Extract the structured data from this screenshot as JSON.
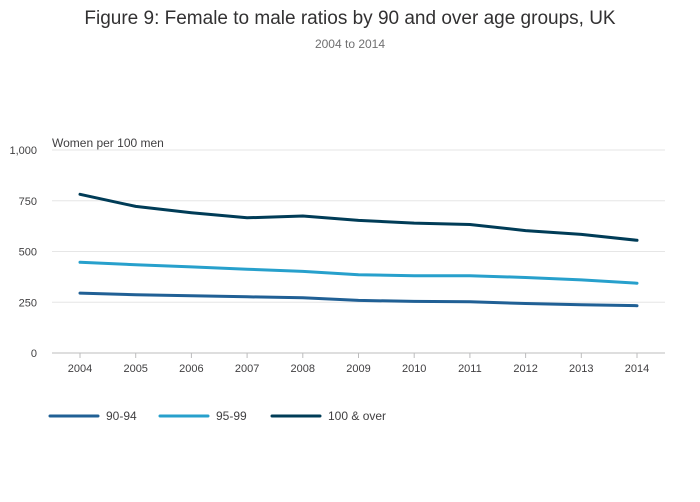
{
  "chart_data": {
    "type": "line",
    "title": "Figure 9: Female to male ratios by 90 and over age groups, UK",
    "subtitle": "2004 to 2014",
    "ylabel": "Women per 100 men",
    "xlabel": "",
    "x": [
      "2004",
      "2005",
      "2006",
      "2007",
      "2008",
      "2009",
      "2010",
      "2011",
      "2012",
      "2013",
      "2014"
    ],
    "ylim": [
      0,
      1000
    ],
    "yticks": [
      0,
      250,
      500,
      750,
      1000
    ],
    "ytick_labels": [
      "0",
      "250",
      "500",
      "750",
      "1,000"
    ],
    "grid": true,
    "legend_position": "bottom-left",
    "series": [
      {
        "name": "90-94",
        "color": "#206095",
        "values": [
          295,
          287,
          282,
          277,
          272,
          259,
          254,
          252,
          244,
          238,
          233
        ]
      },
      {
        "name": "95-99",
        "color": "#27a0cc",
        "values": [
          447,
          435,
          424,
          413,
          402,
          385,
          381,
          381,
          372,
          360,
          344
        ]
      },
      {
        "name": "100 & over",
        "color": "#003c57",
        "values": [
          782,
          722,
          691,
          666,
          675,
          653,
          640,
          633,
          603,
          584,
          555
        ]
      }
    ]
  }
}
